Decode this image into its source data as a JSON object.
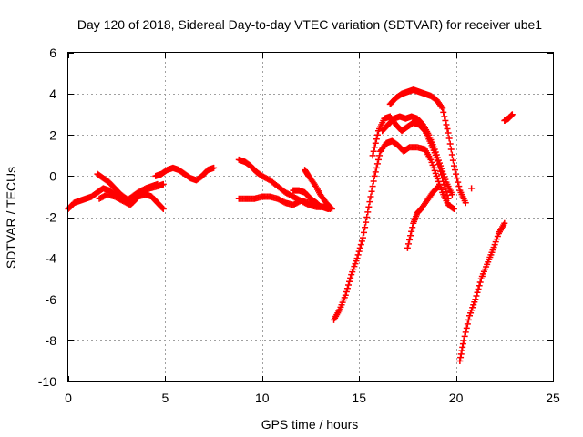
{
  "chart_data": {
    "type": "scatter",
    "title": "Day 120 of 2018, Sidereal Day-to-day VTEC variation (SDTVAR) for receiver ube1",
    "xlabel": "GPS time / hours",
    "ylabel": "SDTVAR / TECUs",
    "xlim": [
      0,
      25
    ],
    "ylim": [
      -10,
      6
    ],
    "xticks": [
      0,
      5,
      10,
      15,
      20,
      25
    ],
    "yticks": [
      -10,
      -8,
      -6,
      -4,
      -2,
      0,
      2,
      4,
      6
    ],
    "grid": true,
    "marker": "+",
    "color": "#ff0000",
    "series": [
      {
        "x": [
          0.0,
          0.3,
          0.6,
          0.9,
          1.2,
          1.5,
          1.8,
          2.1,
          2.4,
          2.7,
          3.0,
          3.3,
          3.6,
          4.0,
          4.3,
          4.6
        ],
        "y": [
          -1.6,
          -1.3,
          -1.2,
          -1.1,
          -1.0,
          -0.8,
          -0.6,
          -0.7,
          -0.9,
          -1.1,
          -1.2,
          -1.0,
          -0.8,
          -0.6,
          -0.5,
          -0.4
        ]
      },
      {
        "x": [
          1.5,
          1.8,
          2.1,
          2.4,
          2.7,
          3.0,
          3.3,
          3.6,
          4.0,
          4.3,
          4.6,
          4.9
        ],
        "y": [
          0.1,
          -0.1,
          -0.3,
          -0.6,
          -0.9,
          -1.1,
          -1.3,
          -1.0,
          -0.9,
          -1.0,
          -1.3,
          -1.6
        ]
      },
      {
        "x": [
          1.6,
          2.0,
          2.4,
          2.8,
          3.2,
          3.5,
          3.8,
          4.2,
          4.6,
          4.9
        ],
        "y": [
          -1.1,
          -0.9,
          -1.0,
          -1.2,
          -1.4,
          -1.1,
          -0.8,
          -0.6,
          -0.5,
          -0.4
        ]
      },
      {
        "x": [
          4.5,
          4.8,
          5.1,
          5.4,
          5.7,
          6.0,
          6.3,
          6.6,
          6.9,
          7.2,
          7.5
        ],
        "y": [
          0.0,
          0.1,
          0.3,
          0.4,
          0.3,
          0.1,
          -0.1,
          -0.2,
          0.0,
          0.3,
          0.4
        ]
      },
      {
        "x": [
          8.8,
          9.1,
          9.4,
          9.7,
          10.0,
          10.4,
          10.8,
          11.2,
          11.6,
          12.0,
          12.4,
          12.8,
          13.1,
          13.4
        ],
        "y": [
          0.8,
          0.7,
          0.5,
          0.2,
          0.0,
          -0.2,
          -0.5,
          -0.8,
          -1.0,
          -1.2,
          -1.3,
          -1.4,
          -1.5,
          -1.6
        ]
      },
      {
        "x": [
          8.8,
          9.2,
          9.6,
          10.0,
          10.4,
          10.8,
          11.2,
          11.6,
          12.0,
          12.4,
          12.8,
          13.2,
          13.5
        ],
        "y": [
          -1.1,
          -1.1,
          -1.1,
          -1.0,
          -1.0,
          -1.1,
          -1.3,
          -1.4,
          -1.2,
          -1.4,
          -1.5,
          -1.5,
          -1.6
        ]
      },
      {
        "x": [
          11.6,
          11.9,
          12.2,
          12.5,
          12.8,
          13.0
        ],
        "y": [
          -0.7,
          -0.7,
          -0.8,
          -1.1,
          -1.3,
          -1.5
        ]
      },
      {
        "x": [
          12.2,
          12.4,
          12.7,
          13.0,
          13.3,
          13.6
        ],
        "y": [
          0.3,
          0.0,
          -0.4,
          -0.9,
          -1.3,
          -1.6
        ]
      },
      {
        "x": [
          13.7,
          14.0,
          14.3,
          14.6,
          14.9,
          15.2,
          15.5,
          15.8,
          16.1,
          16.4,
          16.7,
          17.0,
          17.3,
          17.6,
          18.0,
          18.4,
          18.7,
          19.0,
          19.3,
          19.6,
          19.9
        ],
        "y": [
          -7.0,
          -6.5,
          -5.8,
          -4.8,
          -4.0,
          -3.0,
          -1.5,
          0.0,
          1.2,
          1.6,
          1.7,
          1.5,
          1.2,
          1.4,
          1.4,
          1.3,
          0.8,
          0.0,
          -0.8,
          -1.4,
          -1.6
        ]
      },
      {
        "x": [
          15.7,
          16.0,
          16.3,
          16.6,
          16.9,
          17.2,
          17.5,
          17.8,
          18.1,
          18.4,
          18.7,
          19.0,
          19.3,
          19.6
        ],
        "y": [
          1.0,
          2.2,
          2.8,
          2.9,
          2.5,
          2.2,
          2.4,
          2.6,
          2.5,
          2.2,
          1.6,
          0.9,
          -0.1,
          -1.1
        ]
      },
      {
        "x": [
          16.2,
          16.5,
          16.8,
          17.1,
          17.4,
          17.7,
          18.0,
          18.3,
          18.6,
          18.9,
          19.2,
          19.5,
          19.8
        ],
        "y": [
          2.2,
          2.5,
          2.8,
          2.9,
          2.8,
          2.9,
          2.8,
          2.5,
          2.0,
          1.3,
          0.5,
          -0.3,
          -0.9
        ]
      },
      {
        "x": [
          16.6,
          16.9,
          17.2,
          17.5,
          17.8,
          18.1,
          18.4,
          18.7,
          19.0,
          19.3,
          19.6,
          19.9,
          20.2,
          20.5
        ],
        "y": [
          3.5,
          3.8,
          4.0,
          4.1,
          4.2,
          4.1,
          4.0,
          3.9,
          3.7,
          3.3,
          2.1,
          0.5,
          -0.7,
          -1.3
        ]
      },
      {
        "x": [
          17.5,
          17.8,
          18.0,
          18.2,
          18.5,
          18.8,
          19.1
        ],
        "y": [
          -3.5,
          -2.3,
          -1.8,
          -1.6,
          -1.2,
          -0.8,
          -0.5
        ]
      },
      {
        "x": [
          20.2,
          20.4,
          20.7,
          21.0,
          21.3,
          21.6,
          21.9,
          22.2,
          22.5
        ],
        "y": [
          -9.0,
          -8.0,
          -6.8,
          -6.0,
          -5.0,
          -4.3,
          -3.6,
          -2.8,
          -2.3
        ]
      },
      {
        "x": [
          20.8
        ],
        "y": [
          -0.6
        ]
      },
      {
        "x": [
          22.5,
          22.7,
          22.9
        ],
        "y": [
          2.7,
          2.8,
          3.0
        ]
      }
    ]
  }
}
